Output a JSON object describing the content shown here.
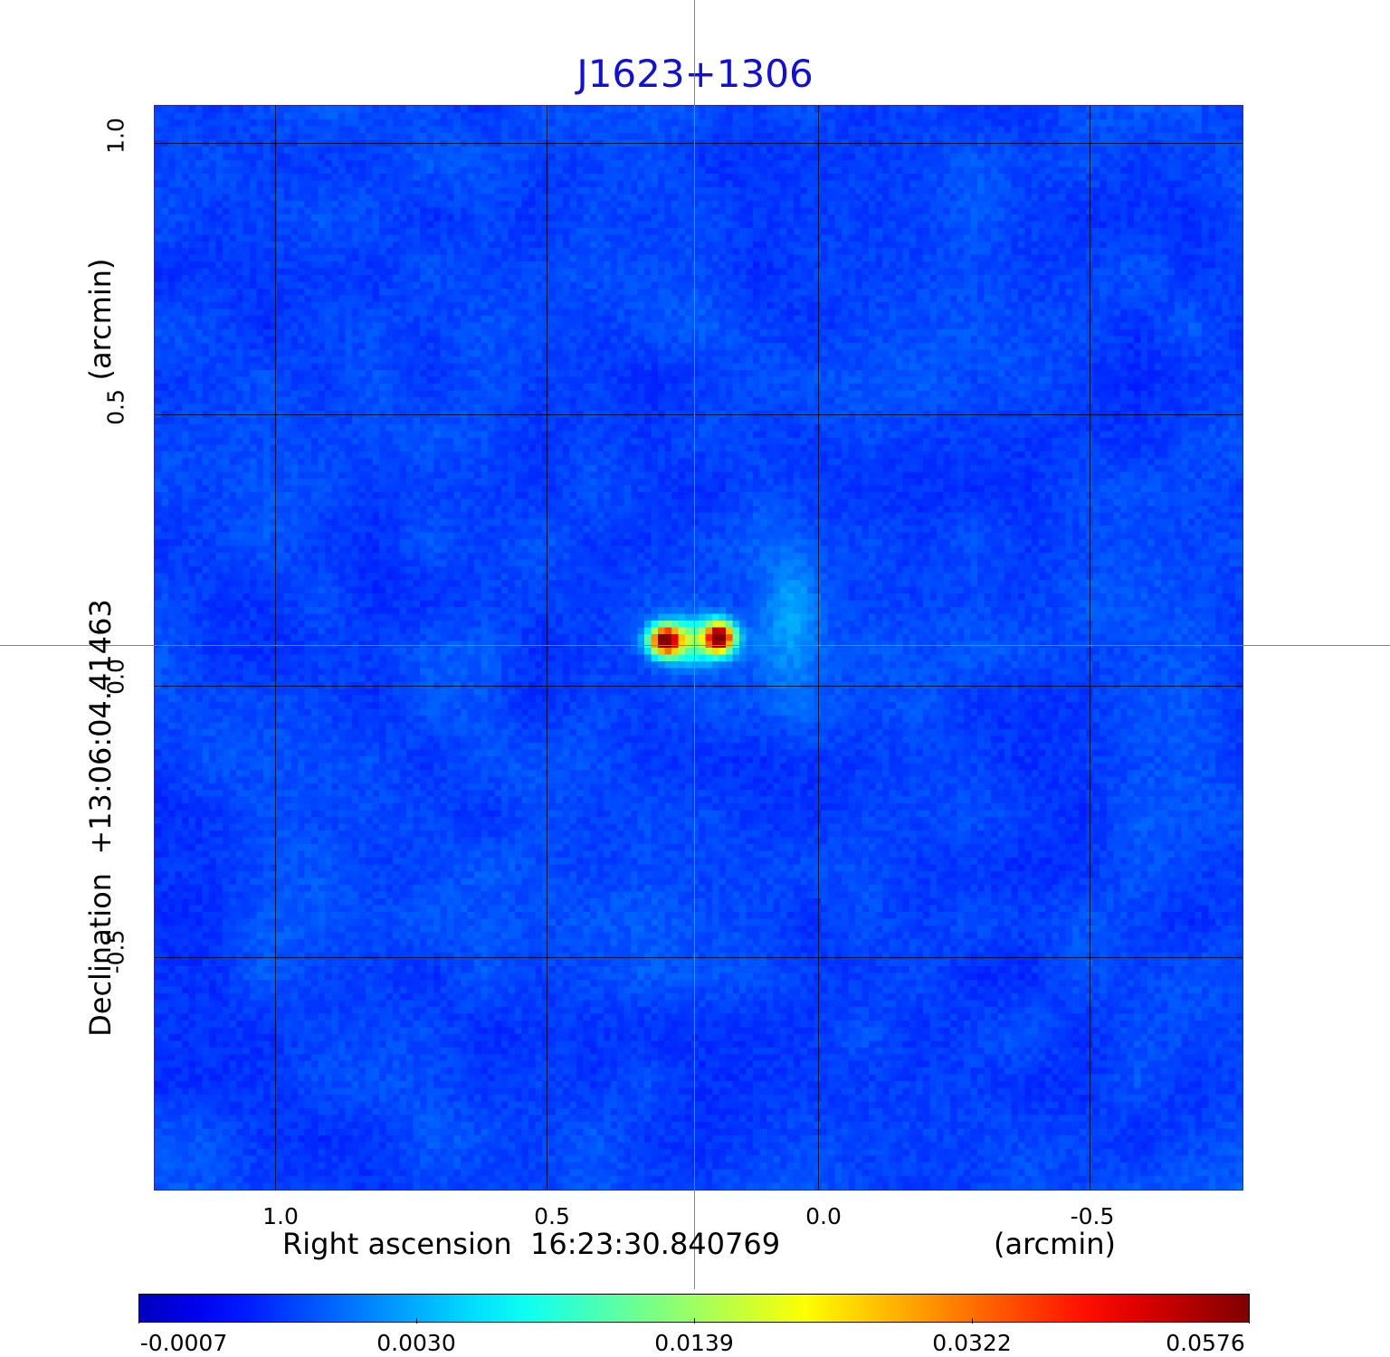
{
  "title": "J1623+1306",
  "x_axis": {
    "label": "Right ascension  16:23:30.840769",
    "unit": "(arcmin)",
    "ticks": [
      "1.0",
      "0.5",
      "0.0",
      "-0.5"
    ]
  },
  "y_axis": {
    "label": "Declination  +13:06:04.41463",
    "unit": "(arcmin)",
    "ticks": [
      "1.0",
      "0.5",
      "0.0",
      "-0.5"
    ]
  },
  "colorbar": {
    "ticks": [
      "-0.0007",
      "0.0030",
      "0.0139",
      "0.0322",
      "0.0576"
    ],
    "colormap": "jet"
  },
  "colors": {
    "title": "#1010d8",
    "crosshair": "#00e000",
    "grid": "#000000"
  }
}
